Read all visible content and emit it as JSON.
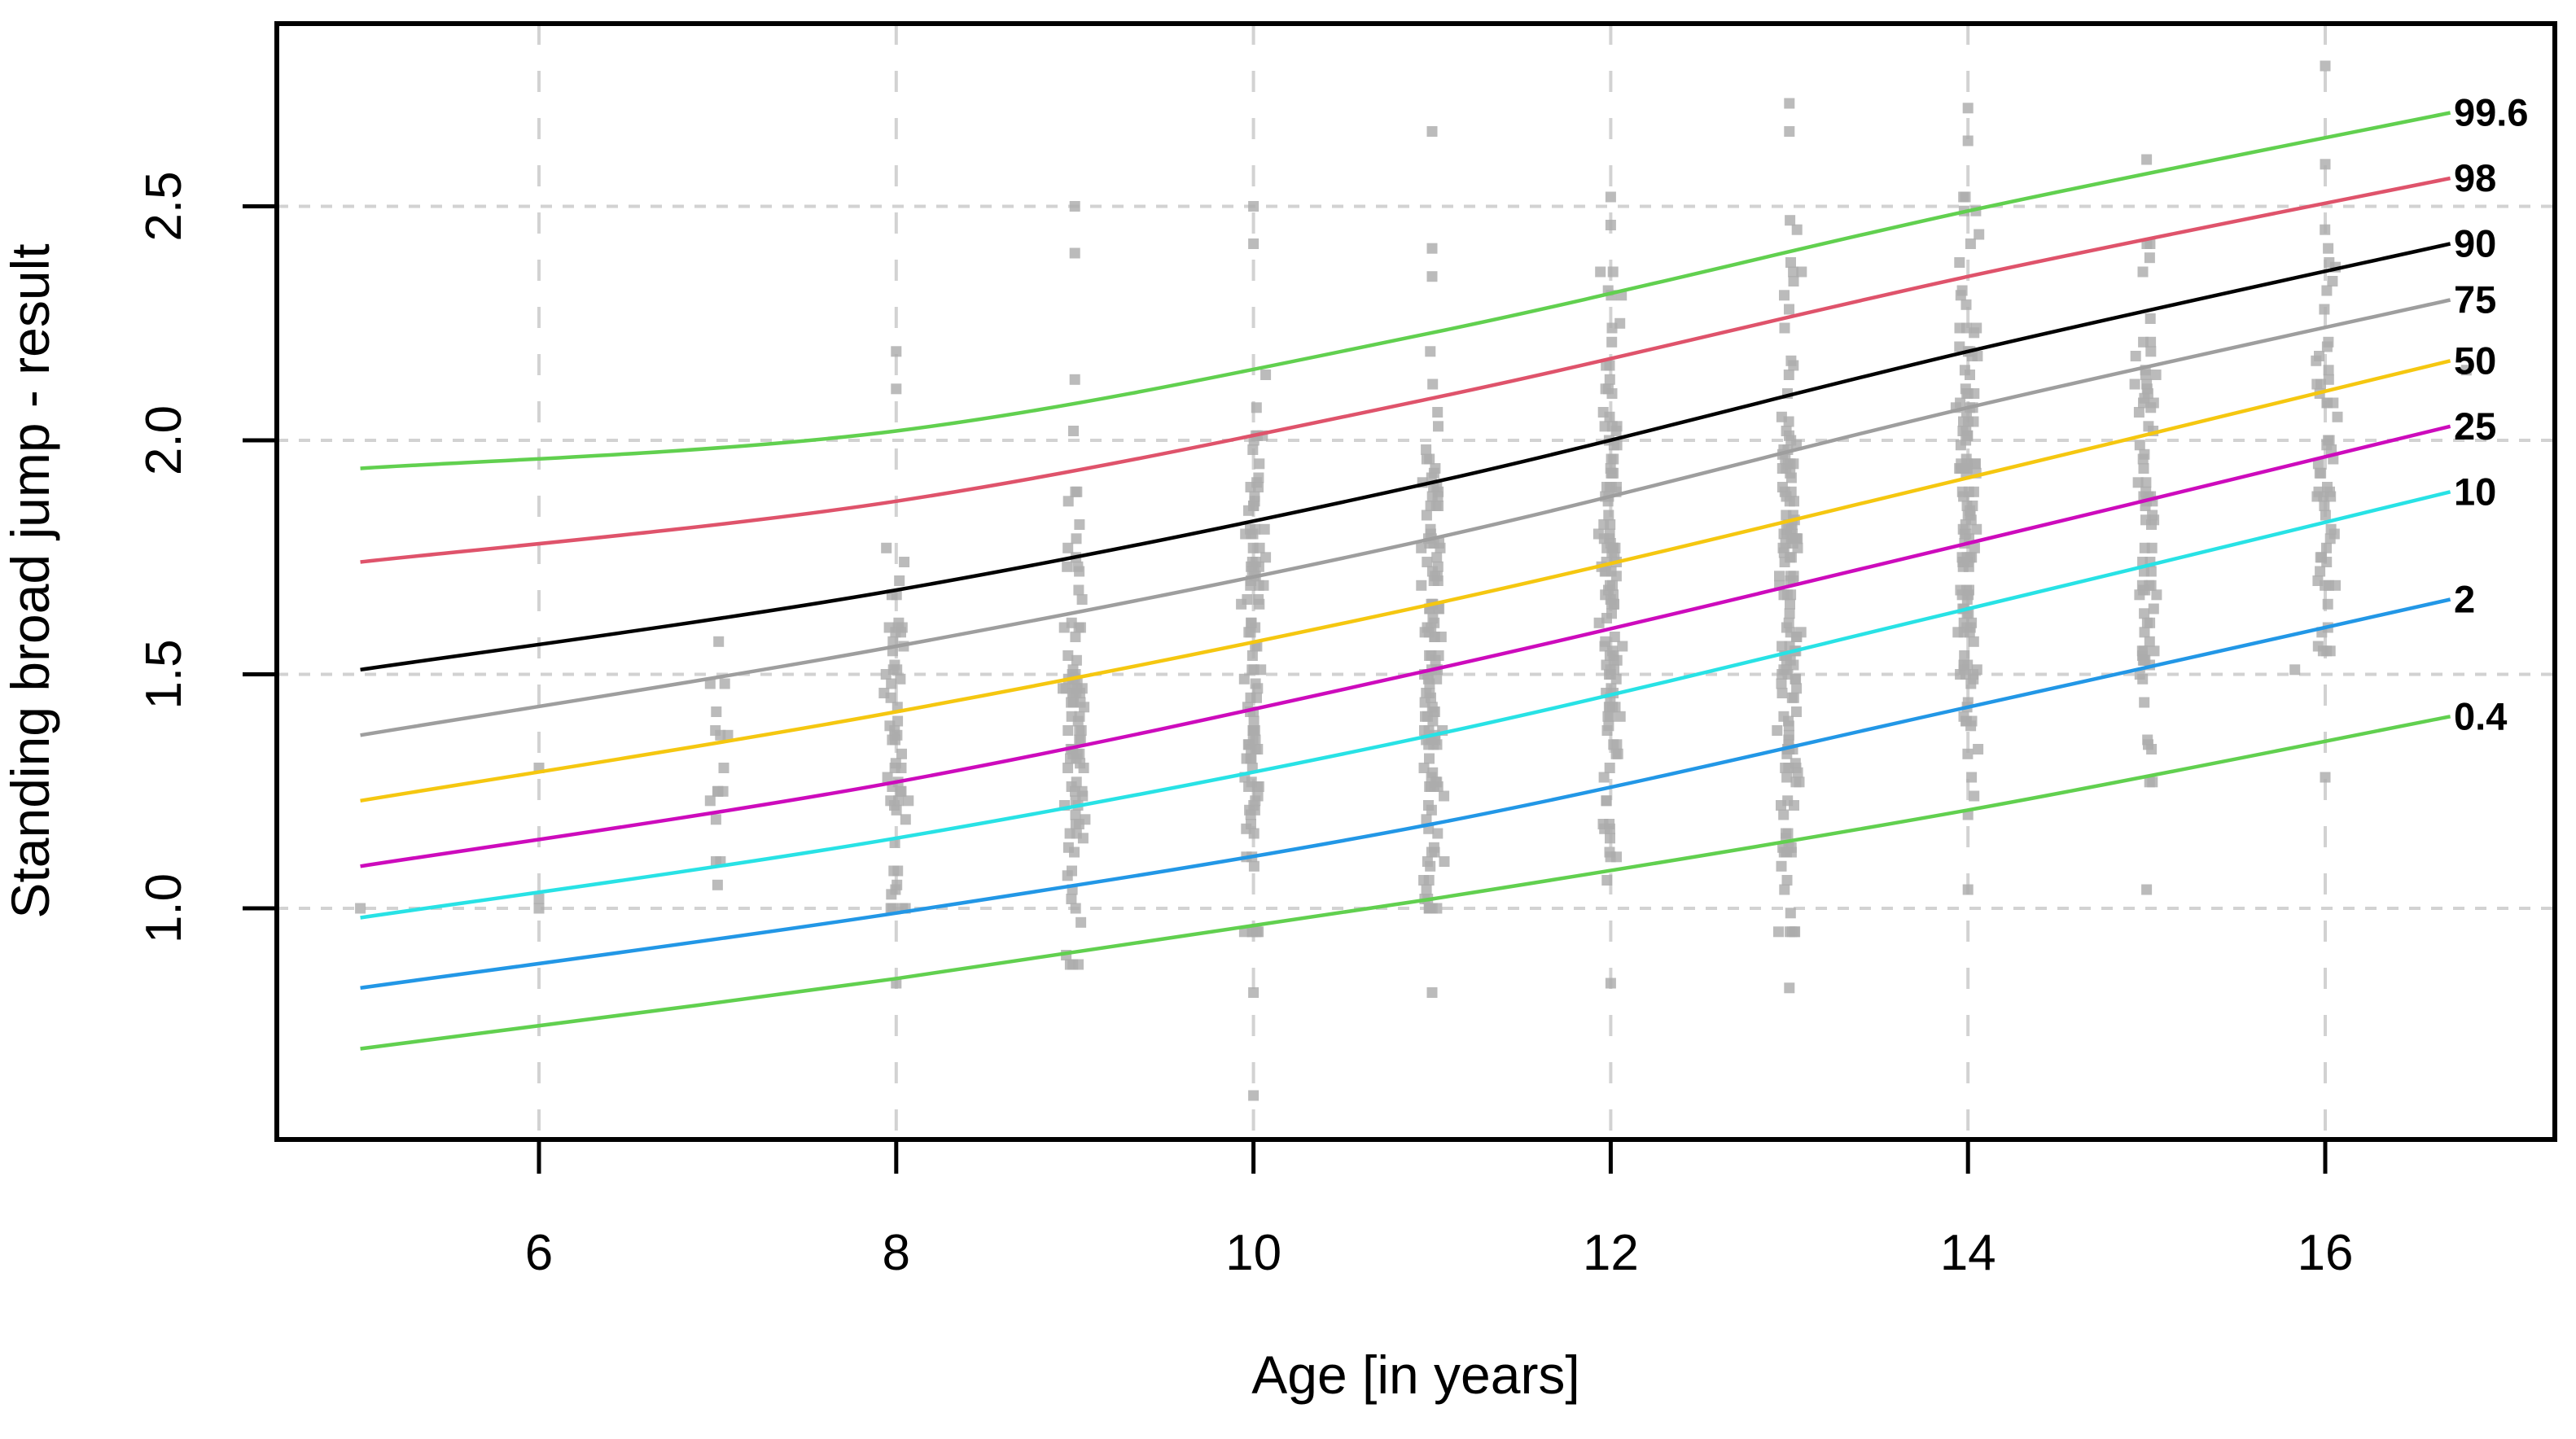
{
  "figure": {
    "background": "#ffffff"
  },
  "axes": {
    "x": {
      "title": "Age [in years]",
      "tick_labels": [
        "6",
        "8",
        "10",
        "12",
        "14",
        "16"
      ],
      "tick_values": [
        6,
        8,
        10,
        12,
        14,
        16
      ],
      "range": [
        4.53,
        17.29
      ]
    },
    "y": {
      "title": "Standing broad jump - result",
      "tick_labels": [
        "1.0",
        "1.5",
        "2.0",
        "2.5"
      ],
      "tick_values": [
        1.0,
        1.5,
        2.0,
        2.5
      ],
      "range": [
        0.51,
        2.89
      ]
    }
  },
  "chart_data": {
    "type": "line",
    "title": "",
    "xlabel": "Age [in years]",
    "ylabel": "Standing broad jump - result",
    "xlim": [
      4.53,
      17.29
    ],
    "ylim": [
      0.51,
      2.89
    ],
    "grid": true,
    "gridline_color": "#d2d2d2",
    "legend_position": "labels-at-right-curve-ends",
    "centile_label_color": "#1414ff",
    "x_knots": [
      5,
      8,
      11,
      14,
      16.7
    ],
    "series": [
      {
        "name": "99.6",
        "color": "#61D04F",
        "values": [
          1.94,
          2.02,
          2.23,
          2.49,
          2.7
        ]
      },
      {
        "name": "98",
        "color": "#DF536B",
        "values": [
          1.74,
          1.87,
          2.09,
          2.35,
          2.56
        ]
      },
      {
        "name": "90",
        "color": "#000000",
        "values": [
          1.51,
          1.68,
          1.91,
          2.19,
          2.42
        ]
      },
      {
        "name": "75",
        "color": "#9E9E9E",
        "values": [
          1.37,
          1.56,
          1.79,
          2.07,
          2.3
        ]
      },
      {
        "name": "50",
        "color": "#F5C710",
        "values": [
          1.23,
          1.42,
          1.65,
          1.92,
          2.17
        ]
      },
      {
        "name": "25",
        "color": "#CD0BBC",
        "values": [
          1.09,
          1.27,
          1.51,
          1.78,
          2.03
        ]
      },
      {
        "name": "10",
        "color": "#28E2E5",
        "values": [
          0.98,
          1.15,
          1.37,
          1.64,
          1.89
        ]
      },
      {
        "name": "2",
        "color": "#2297E6",
        "values": [
          0.83,
          0.99,
          1.18,
          1.43,
          1.66
        ]
      },
      {
        "name": "0.4",
        "color": "#61D04F",
        "values": [
          0.7,
          0.85,
          1.02,
          1.21,
          1.41
        ]
      }
    ],
    "scatter": {
      "marker": "square",
      "color": "#ACACAC",
      "bands": [
        {
          "age": 7,
          "min": 1.1,
          "max": 1.66,
          "n": 14
        },
        {
          "age": 8,
          "min": 1.0,
          "max": 1.88,
          "n": 55
        },
        {
          "age": 9,
          "min": 0.88,
          "max": 2.05,
          "n": 85
        },
        {
          "age": 10,
          "min": 0.95,
          "max": 2.14,
          "n": 100
        },
        {
          "age": 11,
          "min": 1.0,
          "max": 2.25,
          "n": 120
        },
        {
          "age": 12,
          "min": 1.06,
          "max": 2.36,
          "n": 115
        },
        {
          "age": 13,
          "min": 0.95,
          "max": 2.47,
          "n": 140
        },
        {
          "age": 14,
          "min": 1.2,
          "max": 2.52,
          "n": 120
        },
        {
          "age": 15,
          "min": 1.27,
          "max": 2.42,
          "n": 75
        },
        {
          "age": 16,
          "min": 1.55,
          "max": 2.5,
          "n": 55
        }
      ],
      "extra_points": [
        [
          5,
          1.0
        ],
        [
          6,
          1.0
        ],
        [
          6,
          1.02
        ],
        [
          6,
          1.3
        ],
        [
          7,
          1.05
        ],
        [
          7,
          1.25
        ],
        [
          8,
          2.19
        ],
        [
          8,
          2.11
        ],
        [
          8,
          0.84
        ],
        [
          9,
          2.5
        ],
        [
          9,
          2.4
        ],
        [
          9,
          2.13
        ],
        [
          10,
          2.5
        ],
        [
          10,
          2.42
        ],
        [
          10,
          0.82
        ],
        [
          10,
          0.6
        ],
        [
          11,
          2.66
        ],
        [
          11,
          2.41
        ],
        [
          11,
          2.35
        ],
        [
          11,
          0.82
        ],
        [
          12,
          2.52
        ],
        [
          12,
          2.46
        ],
        [
          12,
          0.84
        ],
        [
          13,
          2.72
        ],
        [
          13,
          2.66
        ],
        [
          13,
          0.83
        ],
        [
          14,
          2.71
        ],
        [
          14,
          2.64
        ],
        [
          14,
          1.04
        ],
        [
          15,
          2.6
        ],
        [
          15,
          1.04
        ],
        [
          15.83,
          1.51
        ],
        [
          16,
          2.8
        ],
        [
          16,
          2.59
        ],
        [
          16,
          1.28
        ],
        [
          16.79,
          2.15
        ]
      ]
    }
  }
}
